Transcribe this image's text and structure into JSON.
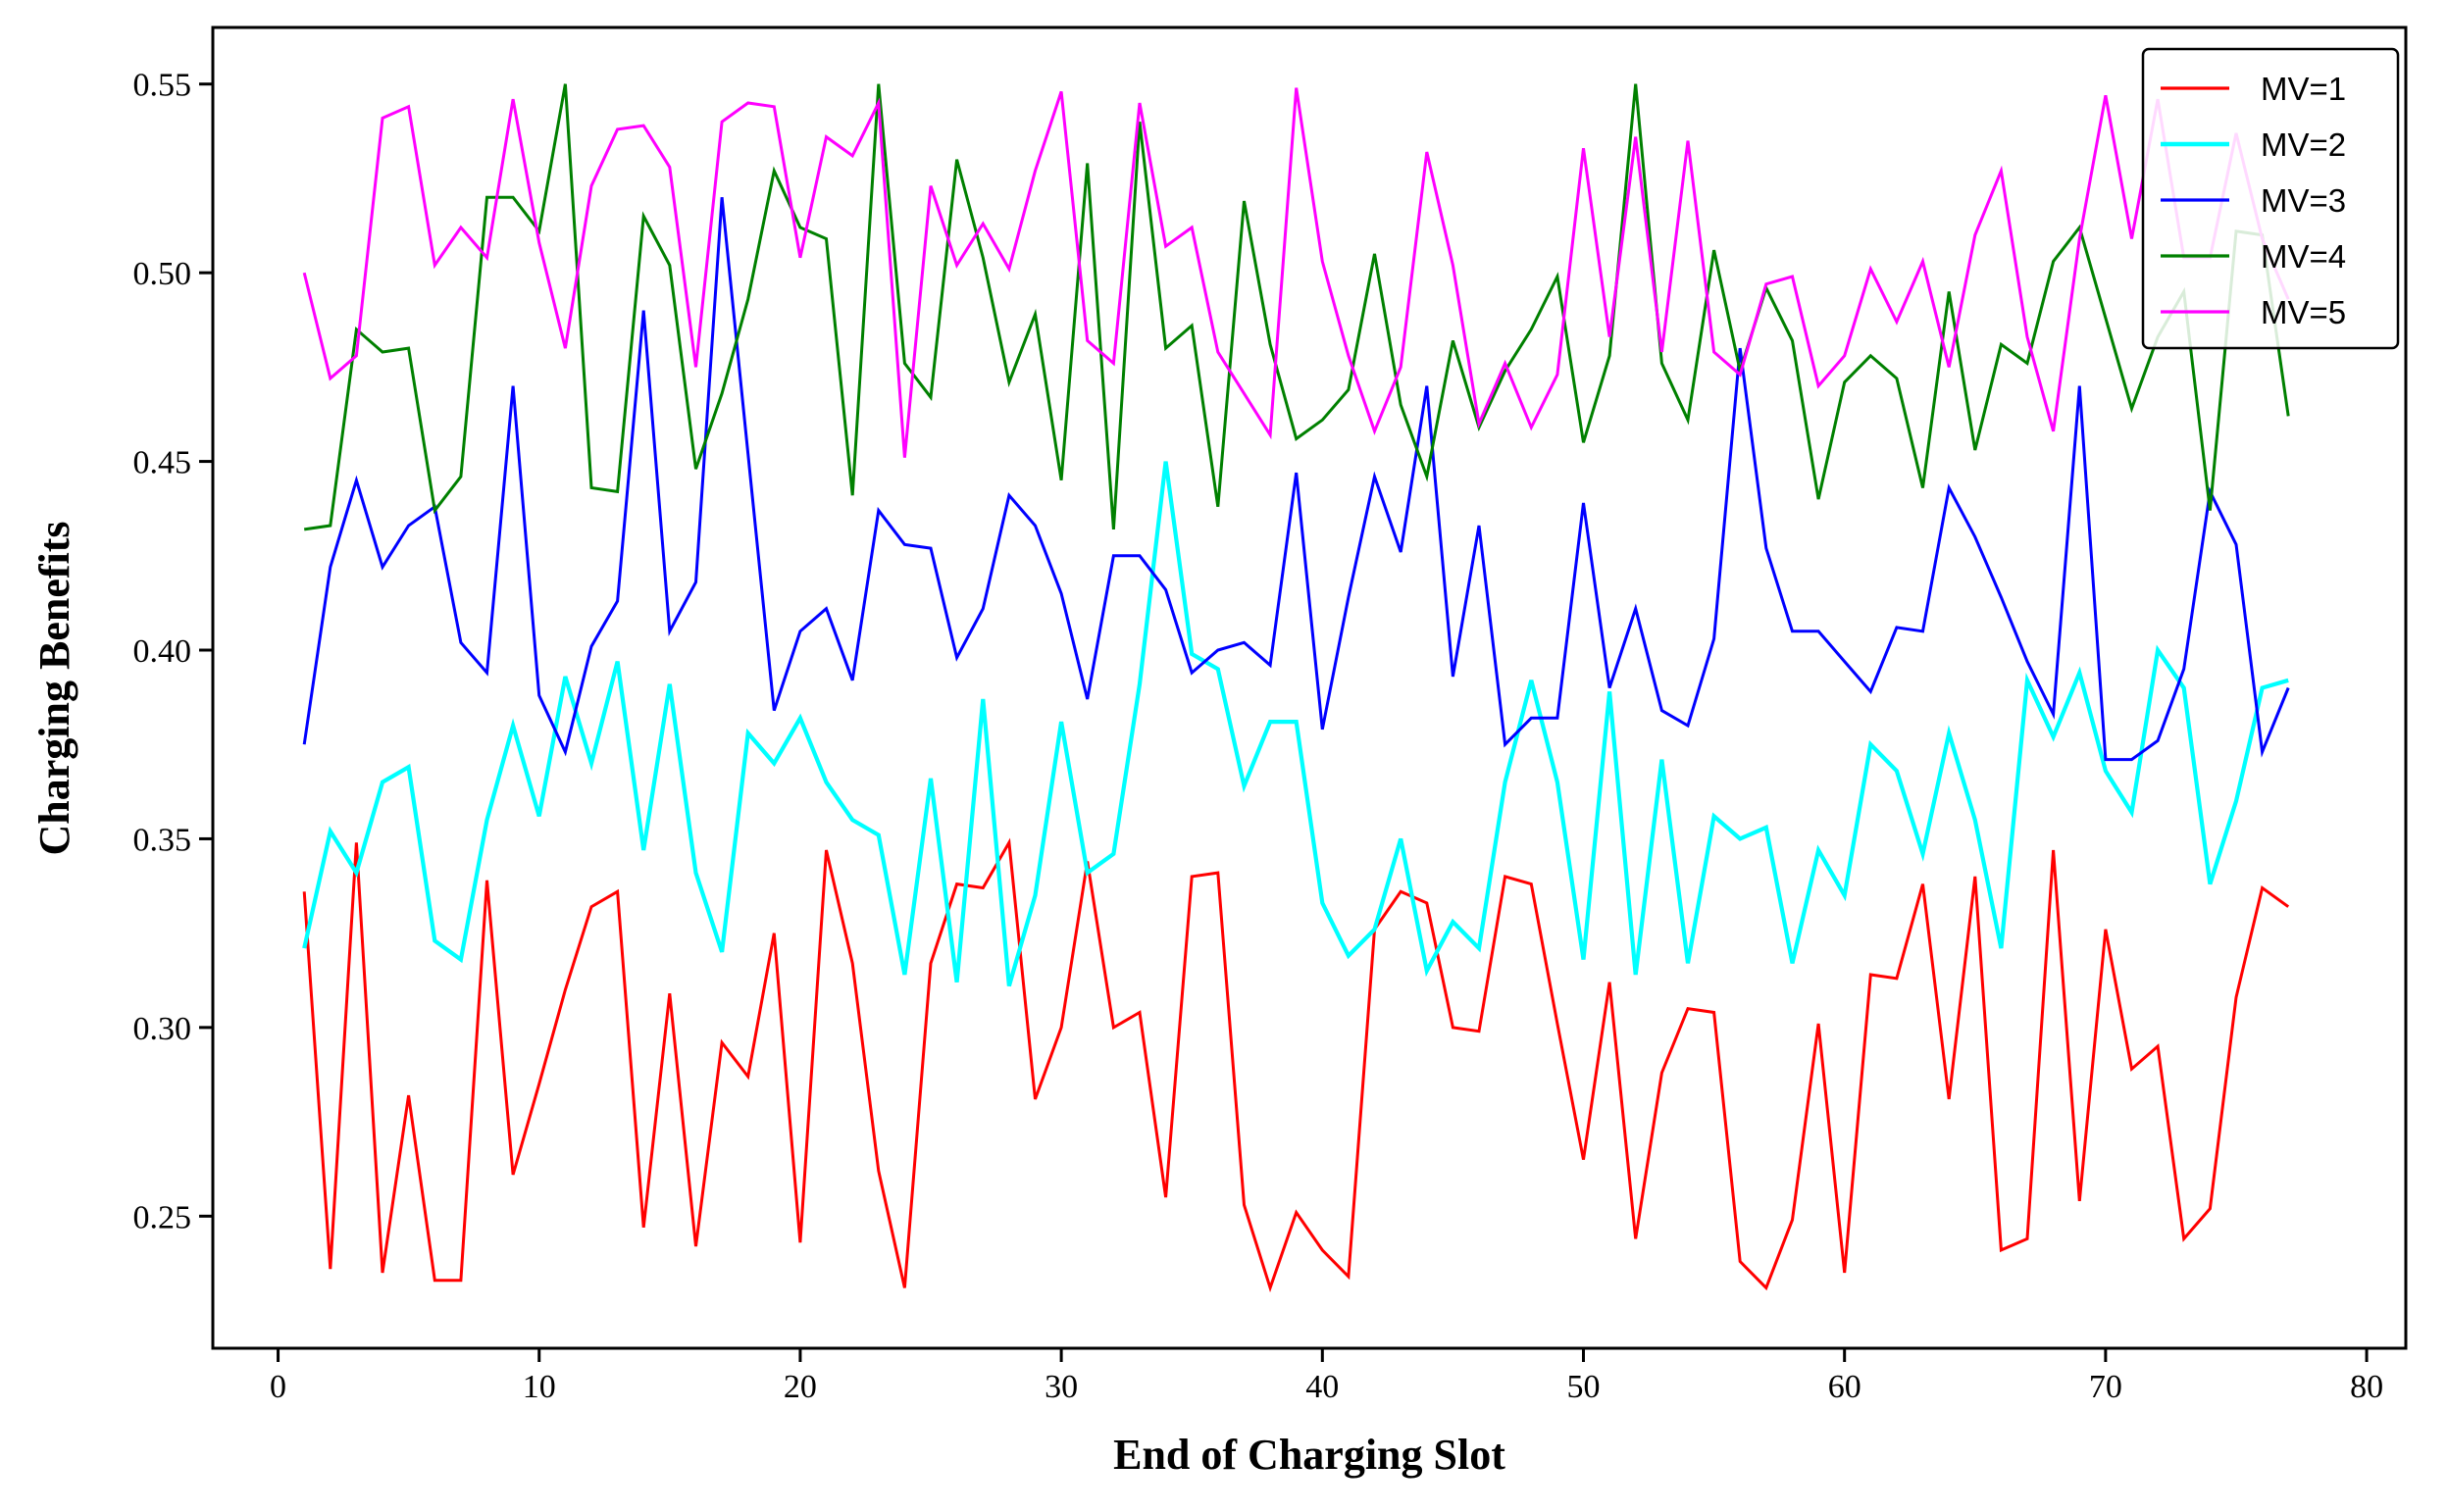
{
  "chart_data": {
    "type": "line",
    "title": "",
    "xlabel": "End of Charging Slot",
    "ylabel": "Charging Benefits",
    "xlim": [
      -2.5,
      81.5
    ],
    "ylim": [
      0.215,
      0.565
    ],
    "xticks": [
      0,
      10,
      20,
      30,
      40,
      50,
      60,
      70,
      80
    ],
    "xtick_labels": [
      "0",
      "10",
      "20",
      "30",
      "40",
      "50",
      "60",
      "70",
      "80"
    ],
    "yticks": [
      0.25,
      0.3,
      0.35,
      0.4,
      0.45,
      0.5,
      0.55
    ],
    "ytick_labels": [
      "0.25",
      "0.30",
      "0.35",
      "0.40",
      "0.45",
      "0.50",
      "0.55"
    ],
    "grid": false,
    "legend_position": "top-right",
    "x": [
      1,
      2,
      3,
      4,
      5,
      6,
      7,
      8,
      9,
      10,
      11,
      12,
      13,
      14,
      15,
      16,
      17,
      18,
      19,
      20,
      21,
      22,
      23,
      24,
      25,
      26,
      27,
      28,
      29,
      30,
      31,
      32,
      33,
      34,
      35,
      36,
      37,
      38,
      39,
      40,
      41,
      42,
      43,
      44,
      45,
      46,
      47,
      48,
      49,
      50,
      51,
      52,
      53,
      54,
      55,
      56,
      57,
      58,
      59,
      60,
      61,
      62,
      63,
      64,
      65,
      66,
      67,
      68,
      69,
      70,
      71,
      72,
      73,
      74,
      75,
      76,
      77
    ],
    "series": [
      {
        "name": "MV=1",
        "color": "#ff0000",
        "values": [
          0.336,
          0.236,
          0.349,
          0.235,
          0.282,
          0.233,
          0.233,
          0.339,
          0.261,
          0.285,
          0.31,
          0.332,
          0.336,
          0.247,
          0.309,
          0.242,
          0.296,
          0.287,
          0.325,
          0.243,
          0.347,
          0.317,
          0.262,
          0.231,
          0.317,
          0.338,
          0.337,
          0.349,
          0.281,
          0.3,
          0.344,
          0.3,
          0.304,
          0.255,
          0.34,
          0.341,
          0.253,
          0.231,
          0.251,
          0.241,
          0.234,
          0.326,
          0.336,
          0.333,
          0.3,
          0.299,
          0.34,
          0.338,
          0.301,
          0.265,
          0.312,
          0.244,
          0.288,
          0.305,
          0.304,
          0.238,
          0.231,
          0.249,
          0.301,
          0.235,
          0.314,
          0.313,
          0.338,
          0.281,
          0.34,
          0.241,
          0.244,
          0.347,
          0.254,
          0.326,
          0.289,
          0.295,
          0.244,
          0.252,
          0.308,
          0.337,
          0.332
        ]
      },
      {
        "name": "MV=2",
        "color": "#00ffff",
        "values": [
          0.321,
          0.352,
          0.341,
          0.365,
          0.369,
          0.323,
          0.318,
          0.355,
          0.38,
          0.356,
          0.393,
          0.37,
          0.397,
          0.347,
          0.391,
          0.341,
          0.32,
          0.378,
          0.37,
          0.382,
          0.365,
          0.355,
          0.351,
          0.314,
          0.366,
          0.312,
          0.387,
          0.311,
          0.335,
          0.381,
          0.341,
          0.346,
          0.391,
          0.45,
          0.399,
          0.395,
          0.364,
          0.381,
          0.381,
          0.333,
          0.319,
          0.326,
          0.35,
          0.315,
          0.328,
          0.321,
          0.365,
          0.392,
          0.365,
          0.318,
          0.389,
          0.314,
          0.371,
          0.317,
          0.356,
          0.35,
          0.353,
          0.317,
          0.347,
          0.335,
          0.375,
          0.368,
          0.346,
          0.378,
          0.355,
          0.321,
          0.392,
          0.377,
          0.394,
          0.368,
          0.357,
          0.4,
          0.39,
          0.338,
          0.36,
          0.39,
          0.392
        ]
      },
      {
        "name": "MV=3",
        "color": "#0000ff",
        "values": [
          0.375,
          0.422,
          0.445,
          0.422,
          0.433,
          0.438,
          0.402,
          0.394,
          0.47,
          0.388,
          0.373,
          0.401,
          0.413,
          0.49,
          0.405,
          0.418,
          0.52,
          0.452,
          0.384,
          0.405,
          0.411,
          0.392,
          0.437,
          0.428,
          0.427,
          0.398,
          0.411,
          0.441,
          0.433,
          0.415,
          0.387,
          0.425,
          0.425,
          0.416,
          0.394,
          0.4,
          0.402,
          0.396,
          0.447,
          0.379,
          0.414,
          0.446,
          0.426,
          0.47,
          0.393,
          0.433,
          0.375,
          0.382,
          0.382,
          0.439,
          0.39,
          0.411,
          0.384,
          0.38,
          0.403,
          0.48,
          0.427,
          0.405,
          0.405,
          0.397,
          0.389,
          0.406,
          0.405,
          0.443,
          0.43,
          0.414,
          0.397,
          0.383,
          0.47,
          0.371,
          0.371,
          0.376,
          0.395,
          0.442,
          0.428,
          0.373,
          0.39
        ]
      },
      {
        "name": "MV=4",
        "color": "#008000",
        "values": [
          0.432,
          0.433,
          0.485,
          0.479,
          0.48,
          0.437,
          0.446,
          0.52,
          0.52,
          0.511,
          0.55,
          0.443,
          0.442,
          0.515,
          0.502,
          0.448,
          0.468,
          0.493,
          0.527,
          0.512,
          0.509,
          0.441,
          0.55,
          0.476,
          0.467,
          0.53,
          0.504,
          0.471,
          0.489,
          0.445,
          0.529,
          0.432,
          0.54,
          0.48,
          0.486,
          0.438,
          0.519,
          0.481,
          0.456,
          0.461,
          0.469,
          0.505,
          0.465,
          0.446,
          0.482,
          0.459,
          0.474,
          0.485,
          0.499,
          0.455,
          0.478,
          0.55,
          0.476,
          0.461,
          0.506,
          0.474,
          0.496,
          0.482,
          0.44,
          0.471,
          0.478,
          0.472,
          0.443,
          0.495,
          0.453,
          0.481,
          0.476,
          0.503,
          0.512,
          0.488,
          0.464,
          0.483,
          0.495,
          0.437,
          0.511,
          0.51,
          0.462
        ]
      },
      {
        "name": "MV=5",
        "color": "#ff00ff",
        "values": [
          0.5,
          0.472,
          0.478,
          0.541,
          0.544,
          0.502,
          0.512,
          0.504,
          0.546,
          0.508,
          0.48,
          0.523,
          0.538,
          0.539,
          0.528,
          0.475,
          0.54,
          0.545,
          0.544,
          0.504,
          0.536,
          0.531,
          0.545,
          0.451,
          0.523,
          0.502,
          0.513,
          0.501,
          0.527,
          0.548,
          0.482,
          0.476,
          0.545,
          0.507,
          0.512,
          0.479,
          0.468,
          0.457,
          0.549,
          0.503,
          0.478,
          0.458,
          0.475,
          0.532,
          0.502,
          0.46,
          0.476,
          0.459,
          0.473,
          0.533,
          0.483,
          0.536,
          0.479,
          0.535,
          0.479,
          0.473,
          0.497,
          0.499,
          0.47,
          0.478,
          0.501,
          0.487,
          0.503,
          0.475,
          0.51,
          0.527,
          0.483,
          0.458,
          0.509,
          0.547,
          0.509,
          0.546,
          0.504,
          0.504,
          0.537,
          0.509,
          0.493
        ]
      }
    ]
  }
}
